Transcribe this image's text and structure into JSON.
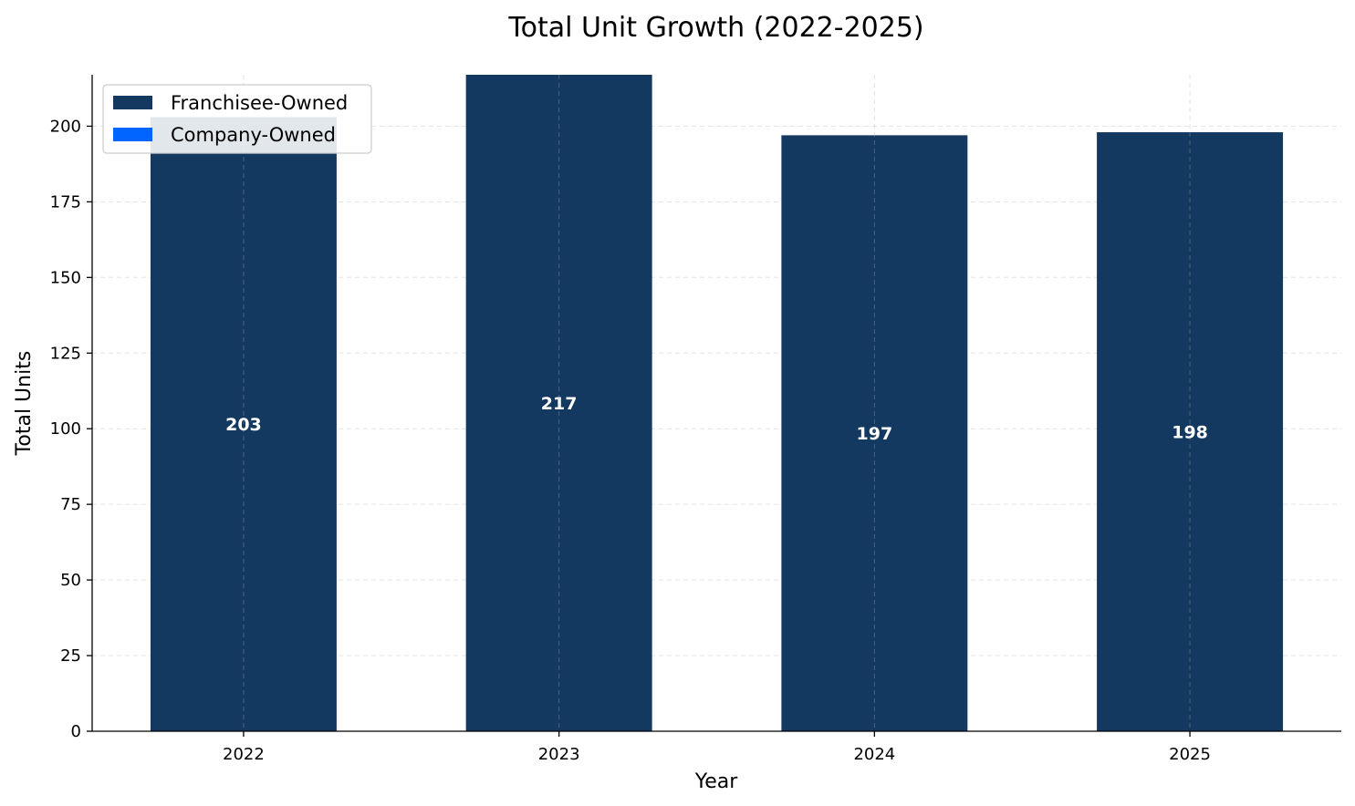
{
  "chart_data": {
    "type": "bar",
    "stacked": true,
    "title": "Total Unit Growth (2022-2025)",
    "xlabel": "Year",
    "ylabel": "Total Units",
    "categories": [
      "2022",
      "2023",
      "2024",
      "2025"
    ],
    "series": [
      {
        "name": "Franchisee-Owned",
        "color": "#143961",
        "values": [
          203,
          217,
          197,
          198
        ]
      },
      {
        "name": "Company-Owned",
        "color": "#0066ff",
        "values": [
          0,
          0,
          0,
          0
        ]
      }
    ],
    "data_labels": [
      "203",
      "217",
      "197",
      "198"
    ],
    "yticks": [
      0,
      25,
      50,
      75,
      100,
      125,
      150,
      175,
      200
    ],
    "ylim": [
      0,
      217
    ],
    "grid": true,
    "legend_position": "top-left"
  }
}
